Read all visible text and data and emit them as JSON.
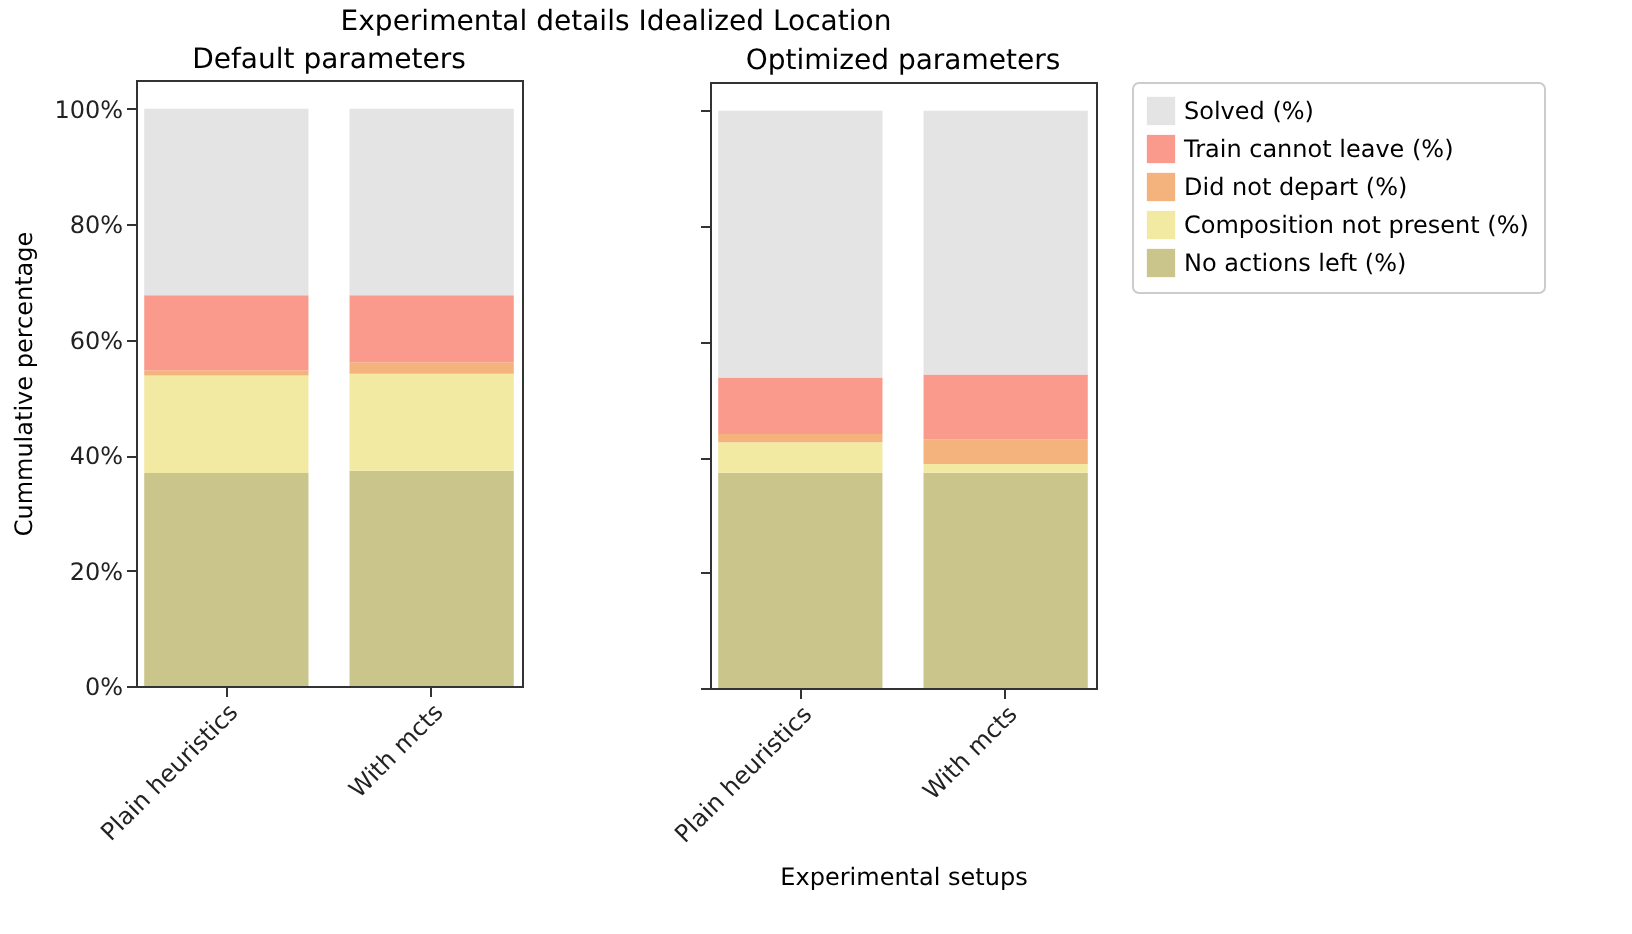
{
  "chart_data": [
    {
      "type": "bar",
      "title": "Default parameters",
      "annotations": [
        "Experimental details Idealized Location"
      ],
      "ylabel": "Cummulative percentage",
      "stacked": true,
      "categories": [
        "Plain heuristics",
        "With mcts"
      ],
      "series": [
        {
          "color": "#cac58b",
          "values": [
            36.9,
            37.3
          ]
        },
        {
          "color": "#f2e9a2",
          "values": [
            16.9,
            16.8
          ]
        },
        {
          "color": "#f4b27d",
          "values": [
            0.9,
            2.0
          ]
        },
        {
          "color": "#fa9a8d",
          "values": [
            13.0,
            11.6
          ]
        },
        {
          "color": "#e4e4e4",
          "values": [
            32.3,
            32.3
          ]
        }
      ],
      "ylim": [
        0,
        105
      ],
      "yticks": [
        {
          "value": 0,
          "label": "0%"
        },
        {
          "value": 20,
          "label": "20%"
        },
        {
          "value": 40,
          "label": "40%"
        },
        {
          "value": 60,
          "label": "60%"
        },
        {
          "value": 80,
          "label": "80%"
        },
        {
          "value": 100,
          "label": "100%"
        }
      ]
    },
    {
      "type": "bar",
      "title": "Optimized parameters",
      "xlabel": "Experimental setups",
      "stacked": true,
      "legend": "top right",
      "tick_labels": "x",
      "categories": [
        "Plain heuristics",
        "With mcts"
      ],
      "series": [
        {
          "name": "No actions left (%)",
          "color": "#cac58b",
          "values": [
            37.3,
            37.3
          ]
        },
        {
          "name": "Composition not present (%)",
          "color": "#f2e9a2",
          "values": [
            5.3,
            1.5
          ]
        },
        {
          "name": "Did not depart (%)",
          "color": "#f4b27d",
          "values": [
            1.4,
            4.3
          ]
        },
        {
          "name": "Train cannot leave (%)",
          "color": "#fa9a8d",
          "values": [
            9.8,
            11.2
          ]
        },
        {
          "name": "Solved (%)",
          "color": "#e4e4e4",
          "values": [
            46.2,
            45.7
          ]
        }
      ],
      "ylim": [
        0,
        105
      ],
      "yticks": [
        {
          "value": 0,
          "label": null
        },
        {
          "value": 20,
          "label": null
        },
        {
          "value": 40,
          "label": null
        },
        {
          "value": 60,
          "label": null
        },
        {
          "value": 80,
          "label": null
        },
        {
          "value": 100,
          "label": null
        }
      ]
    }
  ]
}
